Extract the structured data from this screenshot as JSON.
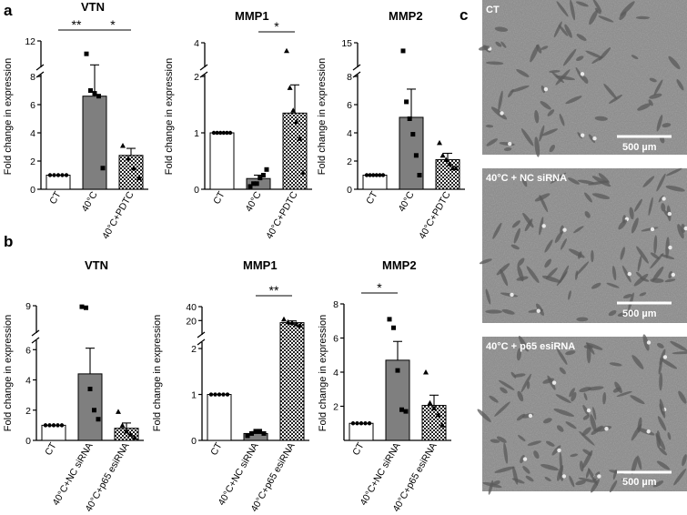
{
  "panels": {
    "a": "a",
    "b": "b",
    "c": "c"
  },
  "chart_data": [
    {
      "type": "bar",
      "panel": "a",
      "title": "VTN",
      "ylabel": "Fold change in expression",
      "categories": [
        "CT",
        "40°C",
        "40°C+PDTC"
      ],
      "yaxis": {
        "break": true,
        "low": [
          0,
          8
        ],
        "high": [
          8,
          12
        ],
        "low_ticks": [
          0,
          2,
          4,
          6
        ],
        "high_ticks": [
          8,
          12
        ]
      },
      "values": [
        1.0,
        6.6,
        2.4
      ],
      "errors": [
        0.0,
        1.5,
        0.5
      ],
      "points": [
        [
          1,
          1,
          1,
          1,
          1
        ],
        [
          9.9,
          7.0,
          6.8,
          6.6,
          1.5
        ],
        [
          3.1,
          2.2,
          1.5,
          0.8
        ]
      ],
      "markers": [
        "circle",
        "square",
        "triangle"
      ],
      "fills": [
        "white",
        "gray",
        "checker"
      ],
      "significance": [
        {
          "from": 0,
          "to": 1,
          "label": "**"
        },
        {
          "from": 1,
          "to": 2,
          "label": "*"
        }
      ]
    },
    {
      "type": "bar",
      "panel": "a",
      "title": "MMP1",
      "ylabel": "Fold change in expression",
      "categories": [
        "CT",
        "40°C",
        "40°C+PDTC"
      ],
      "yaxis": {
        "break": true,
        "low": [
          0,
          2
        ],
        "high": [
          2,
          4
        ],
        "low_ticks": [
          0,
          1
        ],
        "high_ticks": [
          2,
          4
        ]
      },
      "values": [
        1.0,
        0.19,
        1.35
      ],
      "errors": [
        0.0,
        0.06,
        0.5
      ],
      "points": [
        [
          1,
          1,
          1,
          1,
          1,
          1
        ],
        [
          0.05,
          0.1,
          0.1,
          0.2,
          0.25,
          0.35
        ],
        [
          3.3,
          1.8,
          1.4,
          1.2,
          0.9,
          0.3
        ]
      ],
      "markers": [
        "circle",
        "square",
        "triangle"
      ],
      "fills": [
        "white",
        "gray",
        "checker"
      ],
      "significance": [
        {
          "from": 1,
          "to": 2,
          "label": "*"
        }
      ]
    },
    {
      "type": "bar",
      "panel": "a",
      "title": "MMP2",
      "ylabel": "Fold change in expression",
      "categories": [
        "CT",
        "40°C",
        "40°C+PDTC"
      ],
      "yaxis": {
        "break": true,
        "low": [
          0,
          8
        ],
        "high": [
          8,
          15
        ],
        "low_ticks": [
          0,
          2,
          4,
          6
        ],
        "high_ticks": [
          8,
          15
        ]
      },
      "values": [
        1.0,
        5.1,
        2.1
      ],
      "errors": [
        0.0,
        2.0,
        0.45
      ],
      "points": [
        [
          1,
          1,
          1,
          1,
          1,
          1
        ],
        [
          12.5,
          6.2,
          5.0,
          3.9,
          2.4,
          1.0
        ],
        [
          3.3,
          2.4,
          2.1,
          1.8,
          1.5,
          1.5
        ]
      ],
      "markers": [
        "circle",
        "square",
        "triangle"
      ],
      "fills": [
        "white",
        "gray",
        "checker"
      ],
      "significance": []
    },
    {
      "type": "bar",
      "panel": "b",
      "title": "VTN",
      "ylabel": "Fold change in expression",
      "categories": [
        "CT",
        "40°C+NC siRNA",
        "40°C+p65 esiRNA"
      ],
      "yaxis": {
        "break": true,
        "low": [
          0,
          6.5
        ],
        "high": [
          6.5,
          9
        ],
        "low_ticks": [
          0,
          2,
          4,
          6
        ],
        "high_ticks": [
          9
        ]
      },
      "values": [
        1.0,
        4.4,
        0.8
      ],
      "errors": [
        0.0,
        1.7,
        0.35
      ],
      "points": [
        [
          1,
          1,
          1,
          1,
          1
        ],
        [
          8.9,
          8.8,
          3.4,
          2.0,
          1.4
        ],
        [
          1.9,
          1.0,
          0.6,
          0.4,
          0.2
        ]
      ],
      "markers": [
        "circle",
        "square",
        "triangle"
      ],
      "fills": [
        "white",
        "gray",
        "checker"
      ],
      "significance": []
    },
    {
      "type": "bar",
      "panel": "b",
      "title": "MMP1",
      "ylabel": "Fold change in expression",
      "categories": [
        "CT",
        "40°C+NC siRNA",
        "40°C+p65 esiRNA"
      ],
      "yaxis": {
        "break": true,
        "low": [
          0,
          2.1
        ],
        "high": [
          2.1,
          40
        ],
        "low_ticks": [
          0,
          1,
          2
        ],
        "high_ticks": [
          20,
          40
        ]
      },
      "values": [
        1.0,
        0.15,
        17.0
      ],
      "errors": [
        0.0,
        0.04,
        2.5
      ],
      "points": [
        [
          1,
          1,
          1,
          1,
          1
        ],
        [
          0.1,
          0.15,
          0.2,
          0.2,
          0.15
        ],
        [
          22,
          18,
          17,
          15,
          13
        ]
      ],
      "markers": [
        "circle",
        "square",
        "triangle"
      ],
      "fills": [
        "white",
        "gray",
        "checker"
      ],
      "significance": [
        {
          "from": 1,
          "to": 2,
          "label": "**"
        }
      ]
    },
    {
      "type": "bar",
      "panel": "b",
      "title": "MMP2",
      "ylabel": "Fold change in expression",
      "categories": [
        "CT",
        "40°C+NC siRNA",
        "40°C+p65 esiRNA"
      ],
      "yaxis": {
        "break": false,
        "low": [
          0,
          8
        ],
        "high": null,
        "low_ticks": [
          2,
          4,
          6,
          8
        ],
        "high_ticks": []
      },
      "values": [
        1.0,
        4.7,
        2.05
      ],
      "errors": [
        0.0,
        1.1,
        0.6
      ],
      "points": [
        [
          1,
          1,
          1,
          1,
          1
        ],
        [
          7.1,
          6.6,
          4.1,
          1.8,
          1.7
        ],
        [
          4.0,
          2.2,
          1.9,
          1.5,
          0.9
        ]
      ],
      "markers": [
        "circle",
        "square",
        "triangle"
      ],
      "fills": [
        "white",
        "gray",
        "checker"
      ],
      "significance": [
        {
          "from": 0,
          "to": 1,
          "label": "*"
        }
      ]
    }
  ],
  "micrographs": [
    {
      "label": "CT",
      "scale_bar": "500 µm"
    },
    {
      "label": "40°C + NC siRNA",
      "scale_bar": "500 µm"
    },
    {
      "label": "40°C + p65 esiRNA",
      "scale_bar": "500 µm"
    }
  ],
  "colors": {
    "ct_bar": "#ffffff",
    "heat_bar": "#7f7f7f",
    "micrograph_bg": "#8a8a8a"
  }
}
